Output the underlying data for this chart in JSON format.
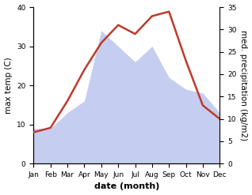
{
  "months": [
    "Jan",
    "Feb",
    "Mar",
    "Apr",
    "May",
    "Jun",
    "Jul",
    "Aug",
    "Sep",
    "Oct",
    "Nov",
    "Dec"
  ],
  "temperature": [
    7,
    8,
    14,
    21,
    27,
    31,
    29,
    33,
    34,
    23,
    13,
    10
  ],
  "precipitation": [
    9,
    9,
    13,
    16,
    34,
    30,
    26,
    30,
    22,
    19,
    18,
    13
  ],
  "temp_color": "#c0392b",
  "precip_fill_color": "#c5cef0",
  "bg_color": "#ffffff",
  "ylabel_left": "max temp (C)",
  "ylabel_right": "med. precipitation (kg/m2)",
  "xlabel": "date (month)",
  "ylim_left": [
    0,
    40
  ],
  "ylim_right": [
    0,
    35
  ],
  "label_fontsize": 7.5,
  "tick_fontsize": 6.5,
  "xlabel_fontsize": 8,
  "temp_linewidth": 1.8,
  "left_yticks": [
    0,
    10,
    20,
    30,
    40
  ],
  "right_yticks": [
    0,
    5,
    10,
    15,
    20,
    25,
    30,
    35
  ]
}
